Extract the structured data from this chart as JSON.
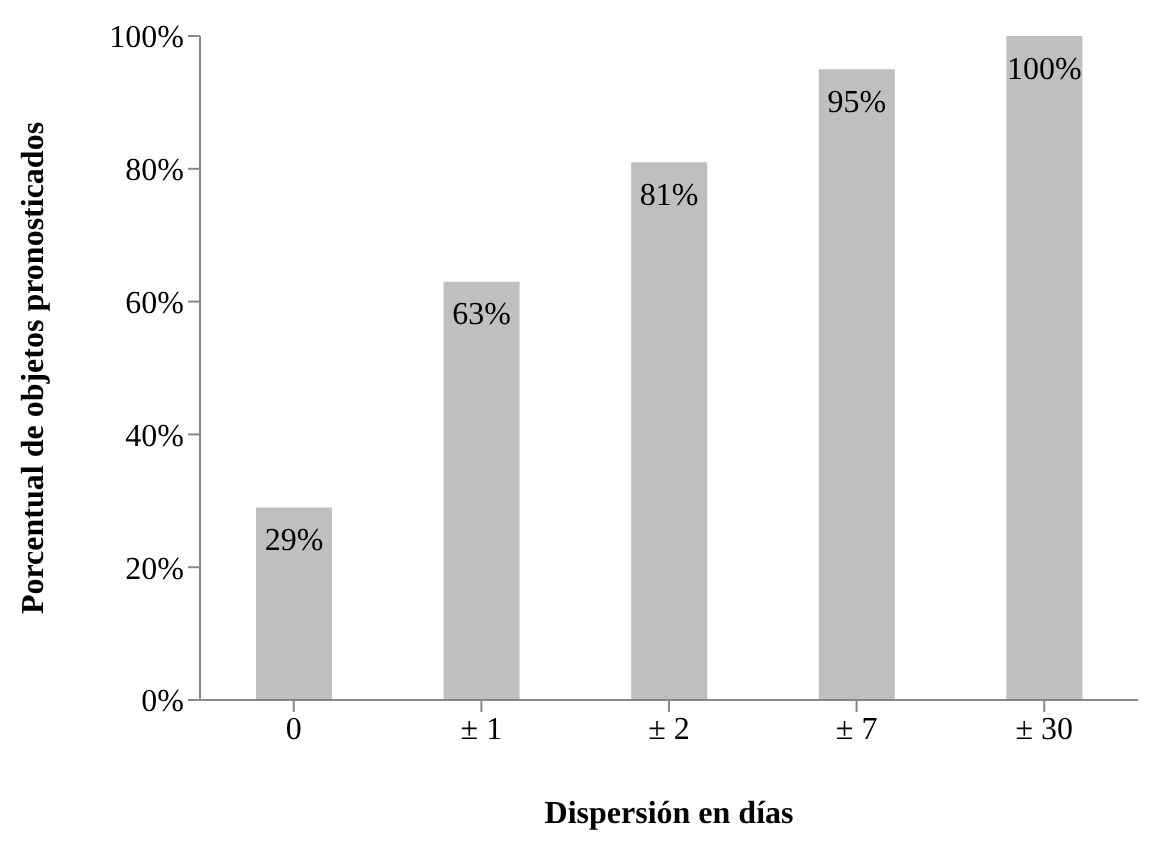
{
  "chart_data": {
    "type": "bar",
    "xlabel": "Dispersión en días",
    "ylabel": "Porcentual de objetos pronosticados",
    "categories": [
      "0",
      "± 1",
      "± 2",
      "± 7",
      "± 30"
    ],
    "values": [
      29,
      63,
      81,
      95,
      100
    ],
    "color": "#bfbfbf",
    "value_labels": [
      "29%",
      "63%",
      "81%",
      "95%",
      "100%"
    ],
    "ylim": [
      0,
      100
    ],
    "yticks": [
      {
        "value": 0,
        "label": "0%"
      },
      {
        "value": 20,
        "label": "20%"
      },
      {
        "value": 40,
        "label": "40%"
      },
      {
        "value": 60,
        "label": "60%"
      },
      {
        "value": 80,
        "label": "80%"
      },
      {
        "value": 100,
        "label": "100%"
      }
    ],
    "grid": false,
    "legend": false
  }
}
